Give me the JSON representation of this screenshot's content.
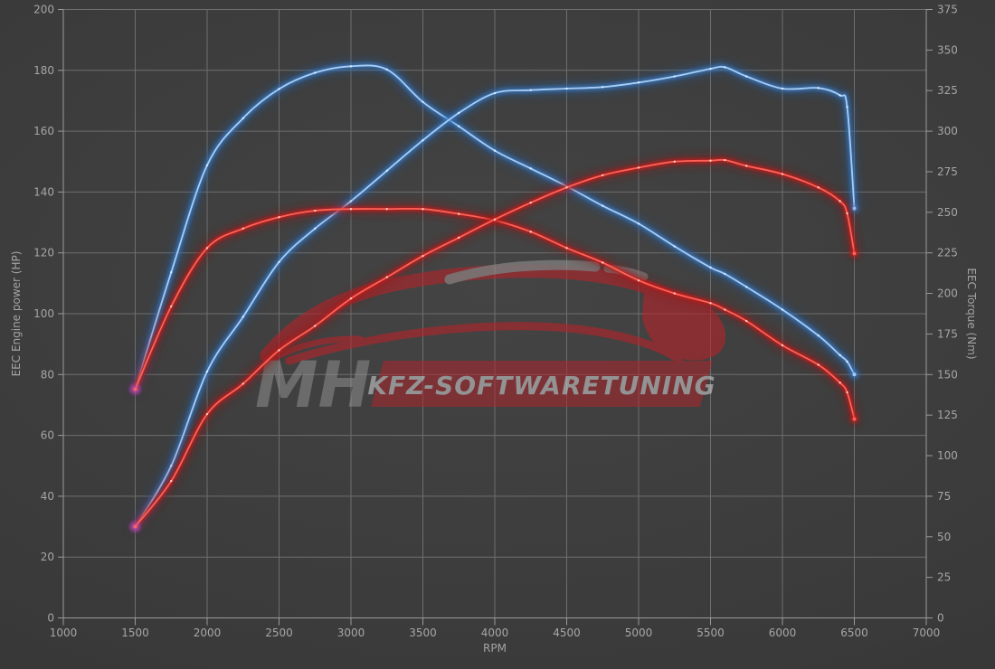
{
  "chart_data": {
    "type": "line",
    "title": "",
    "xlabel": "RPM",
    "ylabel_left": "EEC Engine power (HP)",
    "ylabel_right": "EEC Torque (Nm)",
    "x_range": [
      1000,
      7000
    ],
    "y_left_range": [
      0,
      200
    ],
    "y_right_range": [
      0,
      375
    ],
    "x_ticks": [
      1000,
      1500,
      2000,
      2500,
      3000,
      3500,
      4000,
      4500,
      5000,
      5500,
      6000,
      6500,
      7000
    ],
    "y_left_ticks": [
      0,
      20,
      40,
      60,
      80,
      100,
      120,
      140,
      160,
      180,
      200
    ],
    "y_right_ticks": [
      0,
      25,
      50,
      75,
      100,
      125,
      150,
      175,
      200,
      225,
      250,
      275,
      300,
      325,
      350,
      375
    ],
    "grid": true,
    "legend": "none",
    "markers": true,
    "rpm": [
      1500,
      1750,
      2000,
      2250,
      2500,
      2750,
      3000,
      3250,
      3500,
      3750,
      4000,
      4250,
      4500,
      4750,
      5000,
      5250,
      5500,
      5600,
      5750,
      6000,
      6250,
      6400,
      6450,
      6500
    ],
    "series": [
      {
        "name": "torque-blue",
        "axis": "right",
        "color_core": "#a9cdf4",
        "color_glow": "#3a79c0",
        "color_halo": "#1f5fae",
        "color_marker": "#e4f0ff",
        "values": [
          141,
          213,
          279,
          308,
          326,
          336,
          340,
          338,
          318,
          303,
          288,
          277,
          266,
          254,
          243,
          229,
          216,
          212,
          204,
          190,
          174,
          162,
          158,
          150
        ]
      },
      {
        "name": "power-blue",
        "axis": "left",
        "color_core": "#a9cdf4",
        "color_glow": "#3a79c0",
        "color_halo": "#1f5fae",
        "color_marker": "#e4f0ff",
        "values": [
          30,
          50,
          81,
          99,
          117,
          128,
          137,
          147,
          157,
          166,
          172.5,
          173.5,
          174,
          174.5,
          176,
          178,
          180.5,
          181,
          178,
          174,
          174.2,
          171.8,
          168,
          134.6
        ]
      },
      {
        "name": "torque-red",
        "axis": "right",
        "color_core": "#ff6257",
        "color_glow": "#c41d1d",
        "color_halo": "#8e1212",
        "color_marker": "#ffd9d2",
        "values": [
          141,
          192,
          228,
          240,
          247,
          251,
          252,
          252,
          252,
          249,
          245,
          238,
          228,
          219,
          208,
          200,
          194,
          190,
          183,
          168,
          156,
          145,
          139,
          122.6
        ]
      },
      {
        "name": "power-red",
        "axis": "left",
        "color_core": "#ff6257",
        "color_glow": "#c41d1d",
        "color_halo": "#8e1212",
        "color_marker": "#ffd9d2",
        "values": [
          30,
          45,
          67,
          77,
          88,
          96,
          105,
          112,
          119,
          125,
          131,
          136.5,
          141.5,
          145.5,
          148,
          150,
          150.3,
          150.5,
          148.6,
          145.9,
          141.5,
          137,
          133,
          119.8
        ]
      }
    ]
  },
  "watermark": {
    "brand_initials": "MH",
    "brand_text": "KFZ-SOFTWARETUNING",
    "accent_red": "#b2252b",
    "initials_gray": "#909090",
    "banner_text_gray": "#c6c6c6",
    "window_gray": "#9a9a9a"
  },
  "colors": {
    "background": "#3a3a3a",
    "grid": "#6e6e6e",
    "axis": "#9a9a9a",
    "tick_label": "#a6a6a6",
    "start_halo_magenta": "#c050d8"
  }
}
